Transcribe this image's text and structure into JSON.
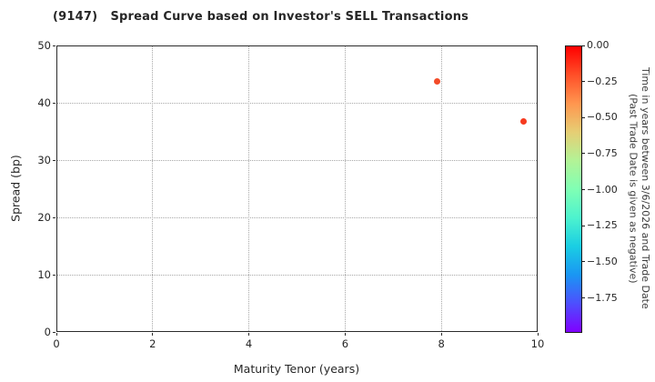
{
  "chart_data": {
    "type": "scatter",
    "title": "(9147)   Spread Curve based on Investor's SELL Transactions",
    "xlabel": "Maturity Tenor (years)",
    "ylabel": "Spread (bp)",
    "xlim": [
      0,
      10
    ],
    "ylim": [
      0,
      50
    ],
    "xticks": [
      0,
      2,
      4,
      6,
      8,
      10
    ],
    "yticks": [
      0,
      10,
      20,
      30,
      40,
      50
    ],
    "grid": "dotted",
    "legend": "none",
    "points": [
      {
        "x": 7.92,
        "y": 43.7,
        "color": "#f34b28"
      },
      {
        "x": 9.7,
        "y": 36.7,
        "color": "#f63a1f"
      }
    ],
    "colorbar": {
      "colormap": "rainbow",
      "vmax": 0.0,
      "vmin": -1.98,
      "label_line1": "Time in years between 3/6/2026 and Trade Date",
      "label_line2": "(Past Trade Date is given as negative)",
      "ticks": [
        {
          "v": 0.0,
          "label": "0.00"
        },
        {
          "v": -0.25,
          "label": "−0.25"
        },
        {
          "v": -0.5,
          "label": "−0.50"
        },
        {
          "v": -0.75,
          "label": "−0.75"
        },
        {
          "v": -1.0,
          "label": "−1.00"
        },
        {
          "v": -1.25,
          "label": "−1.25"
        },
        {
          "v": -1.5,
          "label": "−1.50"
        },
        {
          "v": -1.75,
          "label": "−1.75"
        }
      ]
    }
  }
}
